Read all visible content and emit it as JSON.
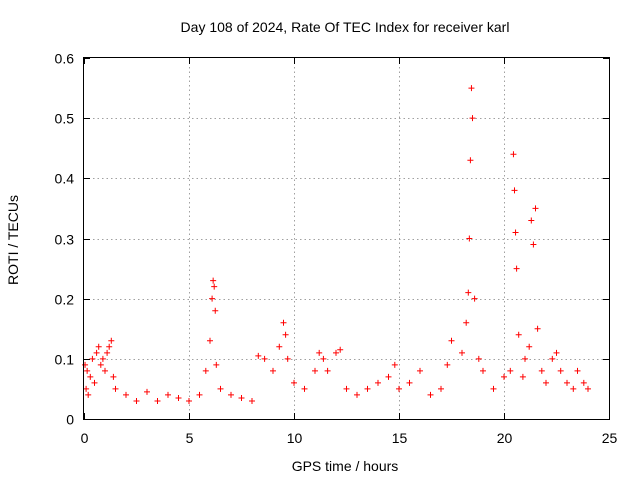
{
  "chart_data": {
    "type": "scatter",
    "title": "Day 108 of 2024, Rate Of TEC Index for receiver karl",
    "xlabel": "GPS time / hours",
    "ylabel": "ROTI / TECUs",
    "xlim": [
      0,
      25
    ],
    "ylim": [
      0,
      0.6
    ],
    "xticks": [
      0,
      5,
      10,
      15,
      20,
      25
    ],
    "yticks": [
      0,
      0.1,
      0.2,
      0.3,
      0.4,
      0.5,
      0.6
    ],
    "xtick_labels": [
      "0",
      "5",
      "10",
      "15",
      "20",
      "25"
    ],
    "ytick_labels": [
      "0",
      "0.1",
      "0.2",
      "0.3",
      "0.4",
      "0.5",
      "0.6"
    ],
    "grid": true,
    "marker": "+",
    "color": "#ff0000",
    "series": [
      {
        "name": "ROTI",
        "x": [
          0.05,
          0.1,
          0.15,
          0.2,
          0.3,
          0.4,
          0.5,
          0.6,
          0.7,
          0.8,
          0.9,
          1.0,
          1.1,
          1.2,
          1.3,
          1.4,
          1.5,
          2.0,
          2.5,
          3.0,
          3.5,
          4.0,
          4.5,
          5.0,
          5.5,
          5.8,
          6.0,
          6.1,
          6.15,
          6.2,
          6.25,
          6.3,
          6.5,
          7.0,
          7.5,
          8.0,
          8.3,
          8.6,
          9.0,
          9.3,
          9.5,
          9.6,
          9.7,
          10.0,
          10.5,
          11.0,
          11.2,
          11.4,
          11.6,
          12.0,
          12.2,
          12.5,
          13.0,
          13.5,
          14.0,
          14.5,
          14.8,
          15.0,
          15.5,
          16.0,
          16.5,
          17.0,
          17.3,
          17.5,
          18.0,
          18.2,
          18.3,
          18.35,
          18.4,
          18.45,
          18.5,
          18.6,
          18.8,
          19.0,
          19.5,
          20.0,
          20.3,
          20.45,
          20.5,
          20.55,
          20.6,
          20.7,
          20.9,
          21.0,
          21.2,
          21.3,
          21.4,
          21.5,
          21.6,
          21.8,
          22.0,
          22.3,
          22.5,
          22.7,
          23.0,
          23.3,
          23.5,
          23.8,
          24.0
        ],
        "y": [
          0.09,
          0.05,
          0.08,
          0.04,
          0.07,
          0.1,
          0.06,
          0.11,
          0.12,
          0.09,
          0.1,
          0.08,
          0.11,
          0.12,
          0.13,
          0.07,
          0.05,
          0.04,
          0.03,
          0.045,
          0.03,
          0.04,
          0.035,
          0.03,
          0.04,
          0.08,
          0.13,
          0.2,
          0.23,
          0.22,
          0.18,
          0.09,
          0.05,
          0.04,
          0.035,
          0.03,
          0.105,
          0.1,
          0.08,
          0.12,
          0.16,
          0.14,
          0.1,
          0.06,
          0.05,
          0.08,
          0.11,
          0.1,
          0.08,
          0.11,
          0.115,
          0.05,
          0.04,
          0.05,
          0.06,
          0.07,
          0.09,
          0.05,
          0.06,
          0.08,
          0.04,
          0.05,
          0.09,
          0.13,
          0.11,
          0.16,
          0.21,
          0.3,
          0.43,
          0.55,
          0.5,
          0.2,
          0.1,
          0.08,
          0.05,
          0.07,
          0.08,
          0.44,
          0.38,
          0.31,
          0.25,
          0.14,
          0.07,
          0.1,
          0.12,
          0.33,
          0.29,
          0.35,
          0.15,
          0.08,
          0.06,
          0.1,
          0.11,
          0.08,
          0.06,
          0.05,
          0.08,
          0.06,
          0.05
        ]
      }
    ]
  }
}
